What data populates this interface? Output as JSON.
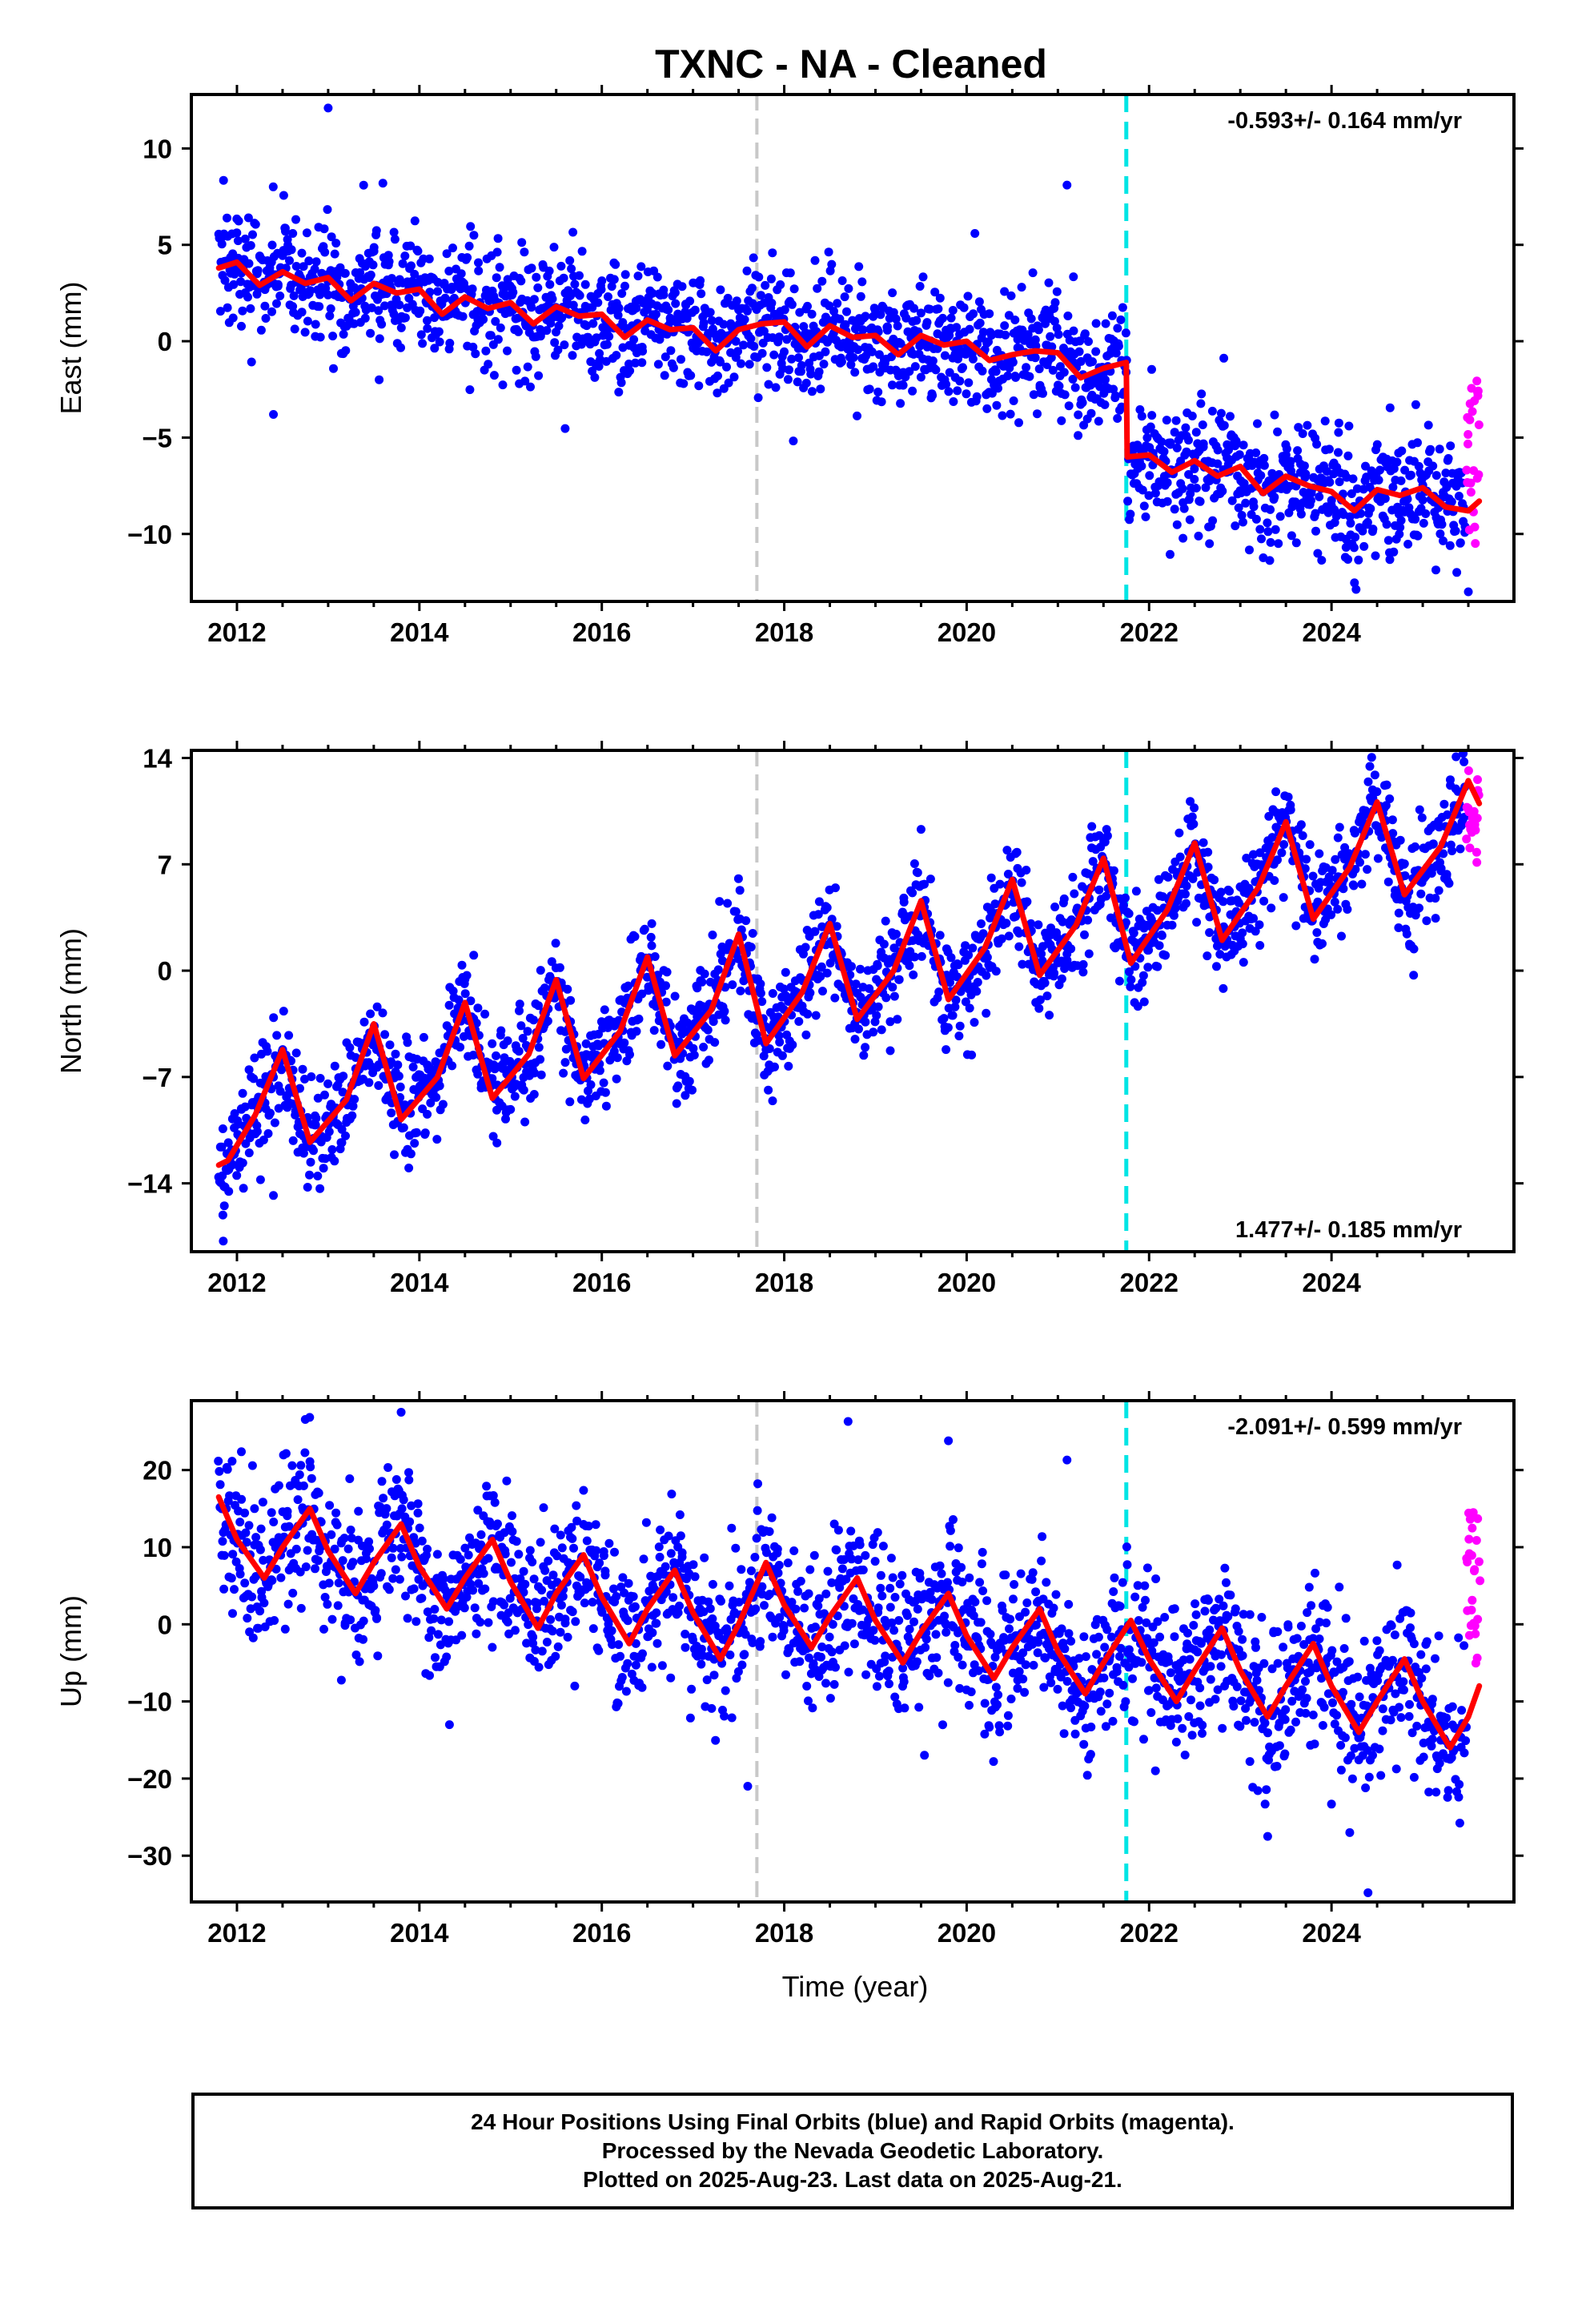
{
  "title": "TXNC  - NA - Cleaned",
  "colors": {
    "final_orbits": "#0000ff",
    "rapid_orbits": "#ff00ff",
    "model_fit": "#ff0000",
    "equipment_change": "#c8c8c8",
    "earthquake": "#00e5e5"
  },
  "chart_data": [
    {
      "type": "scatter",
      "component": "east",
      "ylabel": "East (mm)",
      "xlabel": "",
      "xlim": [
        2011.5,
        2026.0
      ],
      "ylim": [
        -13.5,
        12.8
      ],
      "x_ticks": [
        2012,
        2014,
        2016,
        2018,
        2020,
        2022,
        2024
      ],
      "y_ticks": [
        -10,
        -5,
        0,
        5,
        10
      ],
      "y_tick_labels": [
        "−10",
        "−5",
        "0",
        "5",
        "10"
      ],
      "rate_label": "-0.593+/- 0.164 mm/yr",
      "rate_position": "top-right",
      "vlines": [
        {
          "x": 2017.7,
          "kind": "equipment_change"
        },
        {
          "x": 2021.75,
          "kind": "earthquake"
        }
      ],
      "fit": {
        "x": [
          2011.8,
          2012.0,
          2012.25,
          2012.5,
          2012.75,
          2013.0,
          2013.25,
          2013.5,
          2013.75,
          2014.0,
          2014.25,
          2014.5,
          2014.75,
          2015.0,
          2015.25,
          2015.5,
          2015.75,
          2016.0,
          2016.25,
          2016.5,
          2016.75,
          2017.0,
          2017.25,
          2017.5,
          2017.75,
          2018.0,
          2018.25,
          2018.5,
          2018.75,
          2019.0,
          2019.25,
          2019.5,
          2019.75,
          2020.0,
          2020.25,
          2020.5,
          2020.75,
          2021.0,
          2021.25,
          2021.5,
          2021.75,
          2021.76,
          2022.0,
          2022.25,
          2022.5,
          2022.75,
          2023.0,
          2023.25,
          2023.5,
          2023.75,
          2024.0,
          2024.25,
          2024.5,
          2024.75,
          2025.0,
          2025.25,
          2025.5,
          2025.62
        ],
        "y": [
          3.8,
          4.1,
          2.9,
          3.6,
          3.0,
          3.3,
          2.1,
          3.0,
          2.5,
          2.7,
          1.4,
          2.3,
          1.7,
          2.0,
          0.9,
          1.8,
          1.3,
          1.4,
          0.2,
          1.1,
          0.6,
          0.7,
          -0.5,
          0.6,
          0.9,
          1.0,
          -0.3,
          0.8,
          0.2,
          0.3,
          -0.7,
          0.3,
          -0.2,
          0.0,
          -1.0,
          -0.7,
          -0.5,
          -0.6,
          -1.9,
          -1.4,
          -1.1,
          -6.0,
          -5.9,
          -6.8,
          -6.2,
          -7.0,
          -6.5,
          -7.9,
          -7.0,
          -7.5,
          -7.8,
          -8.8,
          -7.7,
          -8.0,
          -7.6,
          -8.6,
          -8.8,
          -8.3
        ]
      },
      "scatter_model": {
        "spread": 1.6,
        "outliers": [
          {
            "x": 2013.0,
            "y": 12.1
          },
          {
            "x": 2012.4,
            "y": -3.8
          },
          {
            "x": 2025.5,
            "y": -13.0
          },
          {
            "x": 2021.1,
            "y": 8.1
          },
          {
            "x": 2013.6,
            "y": 8.2
          }
        ]
      },
      "rapid_points": {
        "x_start": 2025.48,
        "x_end": 2025.62,
        "y_min": -10.5,
        "y_max": -1.2,
        "count": 24
      }
    },
    {
      "type": "scatter",
      "component": "north",
      "ylabel": "North (mm)",
      "xlabel": "",
      "xlim": [
        2011.5,
        2026.0
      ],
      "ylim": [
        -18.5,
        14.5
      ],
      "x_ticks": [
        2012,
        2014,
        2016,
        2018,
        2020,
        2022,
        2024
      ],
      "y_ticks": [
        -14,
        -7,
        0,
        7,
        14
      ],
      "y_tick_labels": [
        "−14",
        "−7",
        "0",
        "7",
        "14"
      ],
      "rate_label": "1.477+/- 0.185 mm/yr",
      "rate_position": "bottom-right",
      "vlines": [
        {
          "x": 2017.7,
          "kind": "equipment_change"
        },
        {
          "x": 2021.75,
          "kind": "earthquake"
        }
      ],
      "fit": {
        "x": [
          2011.8,
          2011.9,
          2012.2,
          2012.5,
          2012.8,
          2013.2,
          2013.5,
          2013.8,
          2014.2,
          2014.5,
          2014.8,
          2015.2,
          2015.5,
          2015.8,
          2016.2,
          2016.5,
          2016.8,
          2017.2,
          2017.5,
          2017.8,
          2018.2,
          2018.5,
          2018.8,
          2019.2,
          2019.5,
          2019.8,
          2020.2,
          2020.5,
          2020.8,
          2021.2,
          2021.5,
          2021.8,
          2022.2,
          2022.5,
          2022.8,
          2023.2,
          2023.5,
          2023.8,
          2024.2,
          2024.5,
          2024.8,
          2025.2,
          2025.5,
          2025.62
        ],
        "y": [
          -12.8,
          -12.5,
          -9.5,
          -5.2,
          -11.3,
          -8.5,
          -3.5,
          -9.8,
          -7.0,
          -2.1,
          -8.4,
          -5.5,
          -0.6,
          -7.1,
          -4.0,
          0.9,
          -5.6,
          -2.6,
          2.4,
          -4.8,
          -1.4,
          3.1,
          -3.2,
          0.0,
          4.6,
          -1.9,
          1.5,
          6.0,
          -0.3,
          3.0,
          7.4,
          0.5,
          4.0,
          8.4,
          2.0,
          5.5,
          9.8,
          3.4,
          6.8,
          11.1,
          5.0,
          8.2,
          12.5,
          11.0
        ]
      },
      "scatter_model": {
        "spread": 1.7,
        "outliers": [
          {
            "x": 2011.85,
            "y": -17.8
          },
          {
            "x": 2012.4,
            "y": -14.8
          },
          {
            "x": 2024.9,
            "y": -0.3
          },
          {
            "x": 2019.5,
            "y": 9.3
          }
        ]
      },
      "rapid_points": {
        "x_start": 2025.48,
        "x_end": 2025.62,
        "y_min": 7.0,
        "y_max": 13.2,
        "count": 22
      }
    },
    {
      "type": "scatter",
      "component": "up",
      "ylabel": "Up (mm)",
      "xlabel": "Time (year)",
      "xlim": [
        2011.5,
        2026.0
      ],
      "ylim": [
        -36,
        29
      ],
      "x_ticks": [
        2012,
        2014,
        2016,
        2018,
        2020,
        2022,
        2024
      ],
      "y_ticks": [
        -30,
        -20,
        -10,
        0,
        10,
        20
      ],
      "y_tick_labels": [
        "−30",
        "−20",
        "−10",
        "0",
        "10",
        "20"
      ],
      "rate_label": "-2.091+/- 0.599 mm/yr",
      "rate_position": "top-right",
      "vlines": [
        {
          "x": 2017.7,
          "kind": "equipment_change"
        },
        {
          "x": 2021.75,
          "kind": "earthquake"
        }
      ],
      "fit": {
        "x": [
          2011.8,
          2012.0,
          2012.3,
          2012.5,
          2012.8,
          2013.0,
          2013.3,
          2013.5,
          2013.8,
          2014.0,
          2014.3,
          2014.5,
          2014.8,
          2015.0,
          2015.3,
          2015.5,
          2015.8,
          2016.0,
          2016.3,
          2016.5,
          2016.8,
          2017.0,
          2017.3,
          2017.5,
          2017.8,
          2018.0,
          2018.3,
          2018.5,
          2018.8,
          2019.0,
          2019.3,
          2019.5,
          2019.8,
          2020.0,
          2020.3,
          2020.5,
          2020.8,
          2021.0,
          2021.3,
          2021.5,
          2021.8,
          2022.0,
          2022.3,
          2022.5,
          2022.8,
          2023.0,
          2023.3,
          2023.5,
          2023.8,
          2024.0,
          2024.3,
          2024.5,
          2024.8,
          2025.0,
          2025.3,
          2025.5,
          2025.62
        ],
        "y": [
          16.5,
          11.0,
          6.0,
          10.0,
          15.0,
          9.5,
          4.0,
          8.0,
          13.0,
          7.5,
          2.0,
          6.0,
          11.0,
          5.5,
          -0.5,
          4.0,
          9.0,
          3.5,
          -2.5,
          2.0,
          7.0,
          1.5,
          -4.5,
          0.0,
          8.0,
          2.5,
          -3.0,
          1.0,
          6.0,
          0.5,
          -5.0,
          -1.0,
          4.0,
          -1.5,
          -7.0,
          -3.0,
          2.0,
          -3.5,
          -9.0,
          -5.0,
          0.5,
          -4.5,
          -10.0,
          -6.0,
          -0.5,
          -6.0,
          -12.0,
          -8.0,
          -2.5,
          -8.0,
          -14.0,
          -10.0,
          -4.5,
          -10.0,
          -16.0,
          -12.0,
          -8.0
        ]
      },
      "scatter_model": {
        "spread": 5.0,
        "outliers": [
          {
            "x": 2013.8,
            "y": 27.5
          },
          {
            "x": 2018.7,
            "y": 26.3
          },
          {
            "x": 2019.8,
            "y": 23.8
          },
          {
            "x": 2021.1,
            "y": 21.3
          },
          {
            "x": 2017.6,
            "y": -21.0
          },
          {
            "x": 2023.3,
            "y": -27.5
          },
          {
            "x": 2024.4,
            "y": -34.8
          },
          {
            "x": 2024.2,
            "y": -27.0
          }
        ]
      },
      "rapid_points": {
        "x_start": 2025.48,
        "x_end": 2025.62,
        "y_min": -6.0,
        "y_max": 16.5,
        "count": 26
      }
    }
  ],
  "footer": {
    "line1": "24 Hour Positions Using Final Orbits (blue) and Rapid Orbits (magenta).",
    "line2": "Processed by the Nevada Geodetic Laboratory.",
    "line3": "Plotted on 2025-Aug-23. Last data on 2025-Aug-21."
  }
}
